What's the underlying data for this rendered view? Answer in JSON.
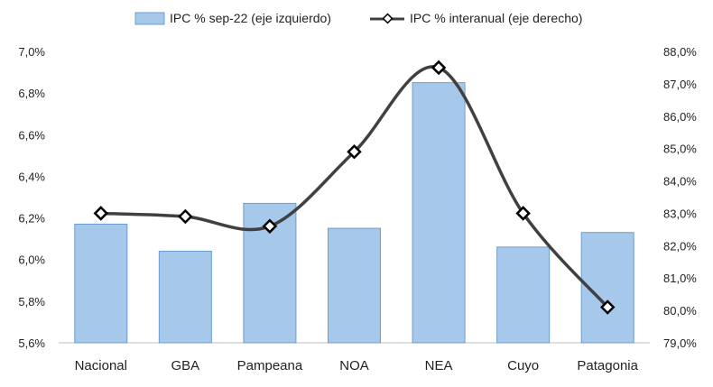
{
  "chart_data": {
    "type": "bar",
    "categories": [
      "Nacional",
      "GBA",
      "Pampeana",
      "NOA",
      "NEA",
      "Cuyo",
      "Patagonia"
    ],
    "series": [
      {
        "name": "IPC % sep-22 (eje izquierdo)",
        "type": "bar",
        "axis": "left",
        "values": [
          6.17,
          6.04,
          6.27,
          6.15,
          6.85,
          6.06,
          6.13
        ]
      },
      {
        "name": "IPC % interanual (eje derecho)",
        "type": "line",
        "axis": "right",
        "values": [
          83.0,
          82.9,
          82.6,
          84.9,
          87.5,
          83.0,
          80.1
        ]
      }
    ],
    "y_left": {
      "ylim": [
        5.6,
        7.0
      ],
      "ticks": [
        5.6,
        5.8,
        6.0,
        6.2,
        6.4,
        6.6,
        6.8,
        7.0
      ],
      "tick_labels": [
        "5,6%",
        "5,8%",
        "6,0%",
        "6,2%",
        "6,4%",
        "6,6%",
        "6,8%",
        "7,0%"
      ]
    },
    "y_right": {
      "ylim": [
        79.0,
        88.0
      ],
      "ticks": [
        79,
        80,
        81,
        82,
        83,
        84,
        85,
        86,
        87,
        88
      ],
      "tick_labels": [
        "79,0%",
        "80,0%",
        "81,0%",
        "82,0%",
        "83,0%",
        "84,0%",
        "85,0%",
        "86,0%",
        "87,0%",
        "88,0%"
      ]
    },
    "legend_position": "top",
    "grid": false,
    "colors": {
      "bar_fill": "#a6c8ea",
      "bar_stroke": "#6d9ccf",
      "line": "#404040",
      "marker_fill": "#ffffff",
      "marker_stroke": "#000000"
    }
  }
}
